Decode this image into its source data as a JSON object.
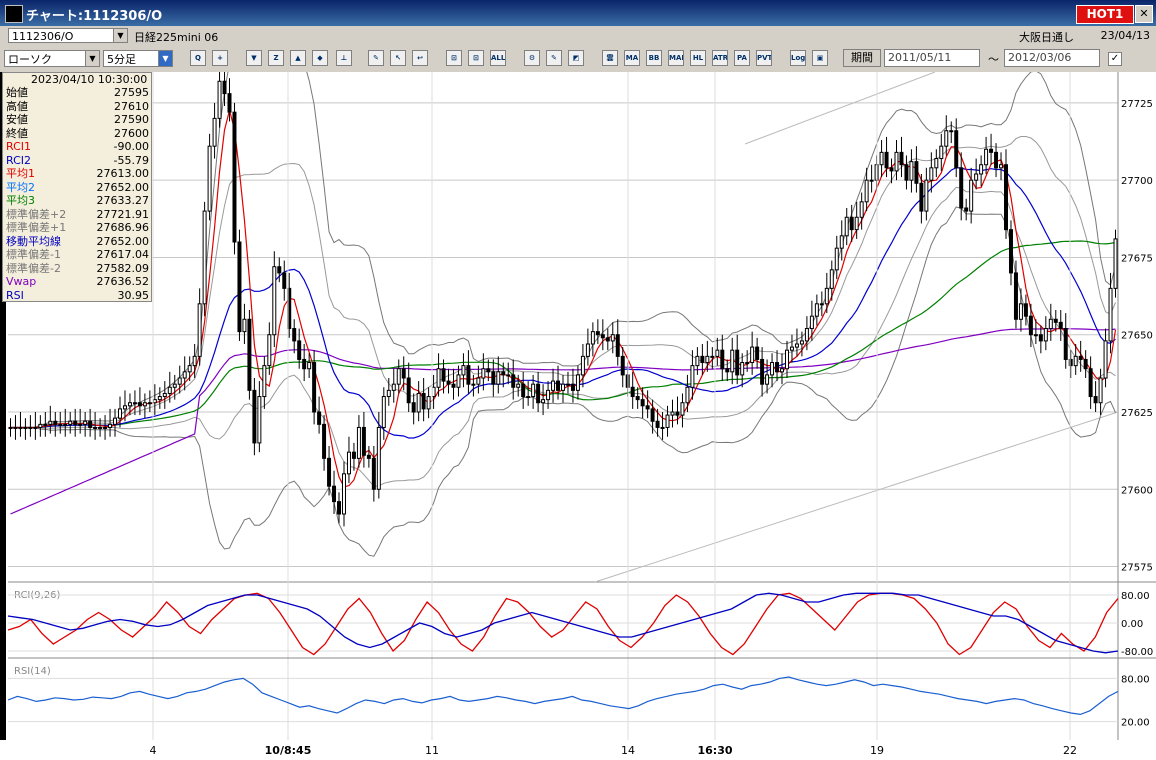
{
  "window": {
    "title": "チャート:1112306/O",
    "hot_label": "HOT1",
    "close_label": "✕"
  },
  "toolbar": {
    "code": "1112306/O",
    "name": "日経225mini 06",
    "session": "大阪日通し",
    "date": "23/04/13",
    "chart_type": "ローソク",
    "interval": "5分足",
    "period_label": "期間",
    "date_from": "2011/05/11",
    "date_to": "2012/03/06",
    "tilde": "〜",
    "buttons": [
      {
        "id": "zoom",
        "label": "Q"
      },
      {
        "id": "cross",
        "label": "+"
      },
      {
        "id": "b1",
        "label": "▼"
      },
      {
        "id": "b2",
        "label": "Z"
      },
      {
        "id": "b3",
        "label": "▲"
      },
      {
        "id": "b4",
        "label": "◆"
      },
      {
        "id": "b5",
        "label": "⊥"
      },
      {
        "id": "b6",
        "label": "✎"
      },
      {
        "id": "b7",
        "label": "↖"
      },
      {
        "id": "b8",
        "label": "↩"
      },
      {
        "id": "b9",
        "label": "⊡"
      },
      {
        "id": "b10",
        "label": "⊡"
      },
      {
        "id": "all",
        "label": "ALL"
      },
      {
        "id": "b11",
        "label": "⚙"
      },
      {
        "id": "b12",
        "label": "✎"
      },
      {
        "id": "b13",
        "label": "◩"
      },
      {
        "id": "ichimoku",
        "label": "雲"
      },
      {
        "id": "ma",
        "label": "MA"
      },
      {
        "id": "bb",
        "label": "BB"
      },
      {
        "id": "mae",
        "label": "MAE"
      },
      {
        "id": "hl",
        "label": "HL"
      },
      {
        "id": "atr",
        "label": "ATR"
      },
      {
        "id": "pa",
        "label": "PA"
      },
      {
        "id": "pvt",
        "label": "PVT"
      },
      {
        "id": "log",
        "label": "Log"
      },
      {
        "id": "b14",
        "label": "▣"
      }
    ]
  },
  "info": {
    "datetime": "2023/04/10  10:30:00",
    "rows": [
      {
        "label": "始値",
        "value": "27595",
        "color": "#000000"
      },
      {
        "label": "高値",
        "value": "27610",
        "color": "#000000"
      },
      {
        "label": "安値",
        "value": "27590",
        "color": "#000000"
      },
      {
        "label": "終値",
        "value": "27600",
        "color": "#000000"
      },
      {
        "label": "RCI1",
        "value": "-90.00",
        "color": "#e00000"
      },
      {
        "label": "RCI2",
        "value": "-55.79",
        "color": "#0000c0"
      },
      {
        "label": "平均1",
        "value": "27613.00",
        "color": "#e00000"
      },
      {
        "label": "平均2",
        "value": "27652.00",
        "color": "#0070ff"
      },
      {
        "label": "平均3",
        "value": "27633.27",
        "color": "#008000"
      },
      {
        "label": "標準偏差+2",
        "value": "27721.91",
        "color": "#777777"
      },
      {
        "label": "標準偏差+1",
        "value": "27686.96",
        "color": "#777777"
      },
      {
        "label": "移動平均線",
        "value": "27652.00",
        "color": "#0000c0"
      },
      {
        "label": "標準偏差-1",
        "value": "27617.04",
        "color": "#777777"
      },
      {
        "label": "標準偏差-2",
        "value": "27582.09",
        "color": "#777777"
      },
      {
        "label": "Vwap",
        "value": "27636.52",
        "color": "#8000c0"
      },
      {
        "label": "RSI",
        "value": "30.95",
        "color": "#0000c0"
      }
    ]
  },
  "chart_data": [
    {
      "type": "candlestick",
      "title": "",
      "ylim": [
        27570,
        27735
      ],
      "yticks": [
        "27725",
        "27700",
        "27675",
        "27650",
        "27625",
        "27600",
        "27575"
      ],
      "xticks": [
        {
          "label": "4",
          "bold": false
        },
        {
          "label": "10/8:45",
          "bold": true
        },
        {
          "label": "11",
          "bold": false
        },
        {
          "label": "14",
          "bold": false
        },
        {
          "label": "16:30",
          "bold": true
        },
        {
          "label": "19",
          "bold": false
        },
        {
          "label": "22",
          "bold": false
        }
      ],
      "close": [
        27620,
        27620,
        27620,
        27620,
        27620,
        27620,
        27621,
        27621,
        27622,
        27621,
        27621,
        27621,
        27622,
        27621,
        27621,
        27622,
        27620,
        27620,
        27620,
        27620,
        27621,
        27623,
        27626,
        27627,
        27628,
        27628,
        27627,
        27628,
        27628,
        27629,
        27630,
        27631,
        27633,
        27634,
        27636,
        27638,
        27640,
        27643,
        27660,
        27690,
        27711,
        27720,
        27732,
        27728,
        27722,
        27680,
        27651,
        27655,
        27632,
        27615,
        27630,
        27640,
        27650,
        27672,
        27670,
        27665,
        27652,
        27648,
        27642,
        27639,
        27641,
        27625,
        27621,
        27610,
        27601,
        27596,
        27592,
        27605,
        27612,
        27610,
        27620,
        27611,
        27610,
        27600,
        27620,
        27630,
        27632,
        27634,
        27639,
        27636,
        27628,
        27625,
        27631,
        27626,
        27630,
        27633,
        27639,
        27635,
        27634,
        27633,
        27637,
        27640,
        27634,
        27634,
        27636,
        27639,
        27638,
        27634,
        27638,
        27637,
        27637,
        27633,
        27634,
        27630,
        27630,
        27634,
        27628,
        27629,
        27632,
        27635,
        27632,
        27634,
        27634,
        27632,
        27637,
        27643,
        27647,
        27651,
        27650,
        27649,
        27648,
        27650,
        27643,
        27637,
        27633,
        27630,
        27629,
        27627,
        27626,
        27622,
        27620,
        27620,
        27624,
        27625,
        27624,
        27628,
        27633,
        27640,
        27643,
        27641,
        27643,
        27643,
        27645,
        27639,
        27638,
        27645,
        27637,
        27641,
        27641,
        27646,
        27642,
        27634,
        27637,
        27641,
        27638,
        27639,
        27645,
        27646,
        27647,
        27648,
        27652,
        27656,
        27660,
        27660,
        27665,
        27671,
        27678,
        27682,
        27688,
        27684,
        27688,
        27693,
        27700,
        27700,
        27705,
        27709,
        27704,
        27703,
        27709,
        27705,
        27700,
        27706,
        27699,
        27690,
        27700,
        27704,
        27707,
        27711,
        27716,
        27716,
        27704,
        27691,
        27690,
        27700,
        27702,
        27705,
        27710,
        27709,
        27704,
        27705,
        27684,
        27670,
        27655,
        27660,
        27656,
        27650,
        27650,
        27648,
        27652,
        27655,
        27654,
        27652,
        27642,
        27640,
        27643,
        27642,
        27639,
        27630,
        27628,
        27636,
        27648,
        27665,
        27681
      ]
    },
    {
      "type": "line",
      "title": "RCI(9,26)",
      "ylim": [
        -100,
        100
      ],
      "yticks": [
        "80.00",
        "0.00",
        "-80.00"
      ],
      "series": [
        {
          "name": "RCI1",
          "color": "#e00000",
          "values": [
            -20,
            -10,
            10,
            -30,
            -60,
            -40,
            -20,
            10,
            30,
            10,
            -20,
            -40,
            -10,
            20,
            60,
            30,
            -10,
            -30,
            10,
            40,
            70,
            80,
            85,
            70,
            30,
            -20,
            -70,
            -90,
            -60,
            -10,
            40,
            70,
            30,
            -30,
            -80,
            -50,
            10,
            60,
            30,
            -20,
            -60,
            -80,
            -40,
            20,
            70,
            60,
            30,
            -10,
            -40,
            -20,
            20,
            60,
            40,
            -10,
            -50,
            -70,
            -40,
            0,
            50,
            80,
            60,
            20,
            -30,
            -70,
            -90,
            -60,
            -10,
            40,
            80,
            85,
            70,
            40,
            10,
            -20,
            20,
            60,
            80,
            85,
            85,
            80,
            70,
            40,
            0,
            -60,
            -90,
            -70,
            -20,
            30,
            60,
            40,
            -10,
            -50,
            -70,
            -30,
            -60,
            -80,
            -40,
            30,
            70
          ]
        },
        {
          "name": "RCI2",
          "color": "#0000c0",
          "values": [
            20,
            15,
            10,
            0,
            -10,
            -20,
            -15,
            -5,
            5,
            10,
            5,
            -5,
            -10,
            -5,
            10,
            30,
            50,
            60,
            70,
            80,
            80,
            70,
            60,
            50,
            40,
            20,
            -10,
            -40,
            -60,
            -70,
            -60,
            -40,
            -20,
            0,
            -10,
            -30,
            -40,
            -30,
            -20,
            0,
            10,
            20,
            30,
            20,
            10,
            0,
            -10,
            -20,
            -30,
            -40,
            -40,
            -30,
            -20,
            -10,
            0,
            10,
            20,
            30,
            40,
            60,
            80,
            85,
            80,
            70,
            60,
            60,
            70,
            80,
            85,
            85,
            85,
            85,
            80,
            80,
            70,
            60,
            50,
            40,
            30,
            20,
            20,
            10,
            -10,
            -30,
            -50,
            -60,
            -70,
            -80,
            -85,
            -80
          ]
        }
      ]
    },
    {
      "type": "line",
      "title": "RSI(14)",
      "ylim": [
        0,
        100
      ],
      "yticks": [
        "80.00",
        "20.00"
      ],
      "series": [
        {
          "name": "RSI",
          "color": "#1a5fd0",
          "values": [
            50,
            55,
            52,
            48,
            50,
            53,
            52,
            50,
            51,
            54,
            53,
            52,
            55,
            60,
            62,
            58,
            55,
            52,
            55,
            60,
            62,
            65,
            70,
            75,
            78,
            80,
            72,
            60,
            55,
            50,
            45,
            40,
            42,
            38,
            35,
            32,
            38,
            45,
            50,
            48,
            45,
            50,
            52,
            48,
            46,
            50,
            52,
            55,
            50,
            48,
            50,
            52,
            55,
            53,
            50,
            48,
            45,
            48,
            50,
            52,
            55,
            50,
            48,
            45,
            42,
            40,
            38,
            42,
            48,
            52,
            55,
            58,
            60,
            62,
            65,
            70,
            72,
            68,
            65,
            70,
            72,
            75,
            80,
            82,
            78,
            75,
            72,
            70,
            72,
            75,
            78,
            75,
            70,
            72,
            70,
            68,
            65,
            62,
            60,
            58,
            55,
            52,
            50,
            48,
            45,
            48,
            50,
            52,
            50,
            45,
            42,
            38,
            35,
            32,
            30,
            35,
            45,
            55,
            62
          ]
        }
      ]
    }
  ]
}
